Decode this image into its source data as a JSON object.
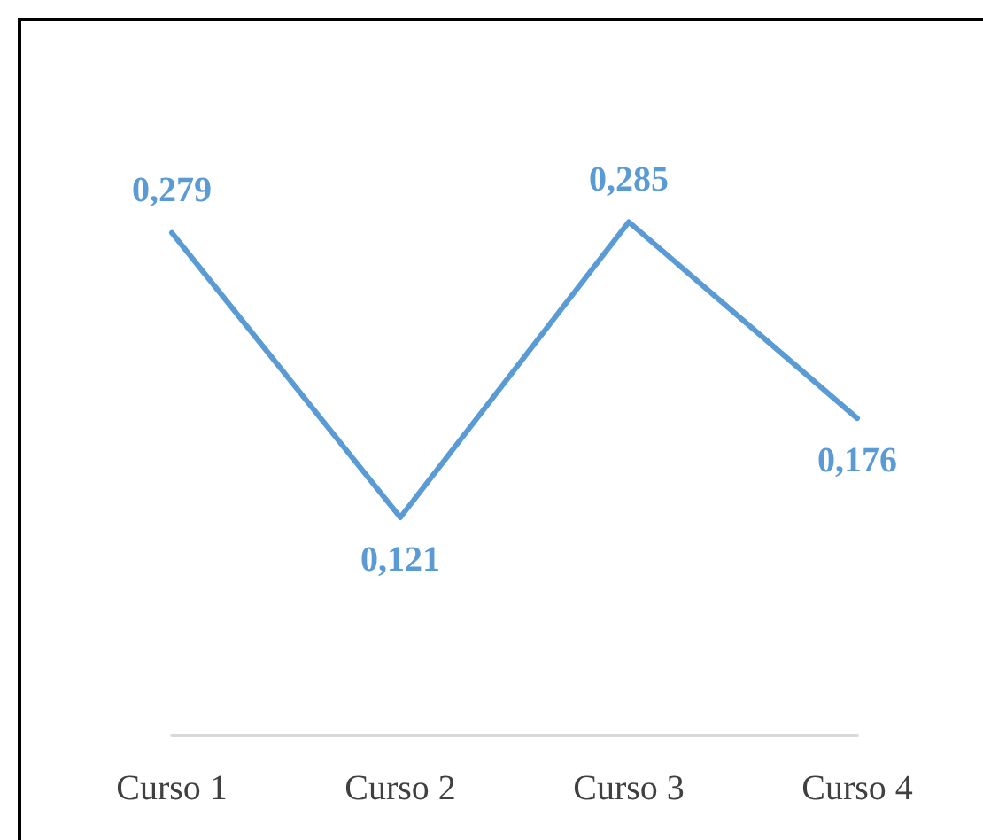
{
  "chart_data": {
    "type": "line",
    "categories": [
      "Curso 1",
      "Curso 2",
      "Curso 3",
      "Curso 4"
    ],
    "series": [
      {
        "color": "#5b9bd5",
        "values": [
          0.279,
          0.121,
          0.285,
          0.176
        ],
        "value_labels": [
          "0,279",
          "0,121",
          "0,285",
          "0,176"
        ]
      }
    ],
    "grid": false,
    "marker": "none",
    "line_style": "solid"
  }
}
